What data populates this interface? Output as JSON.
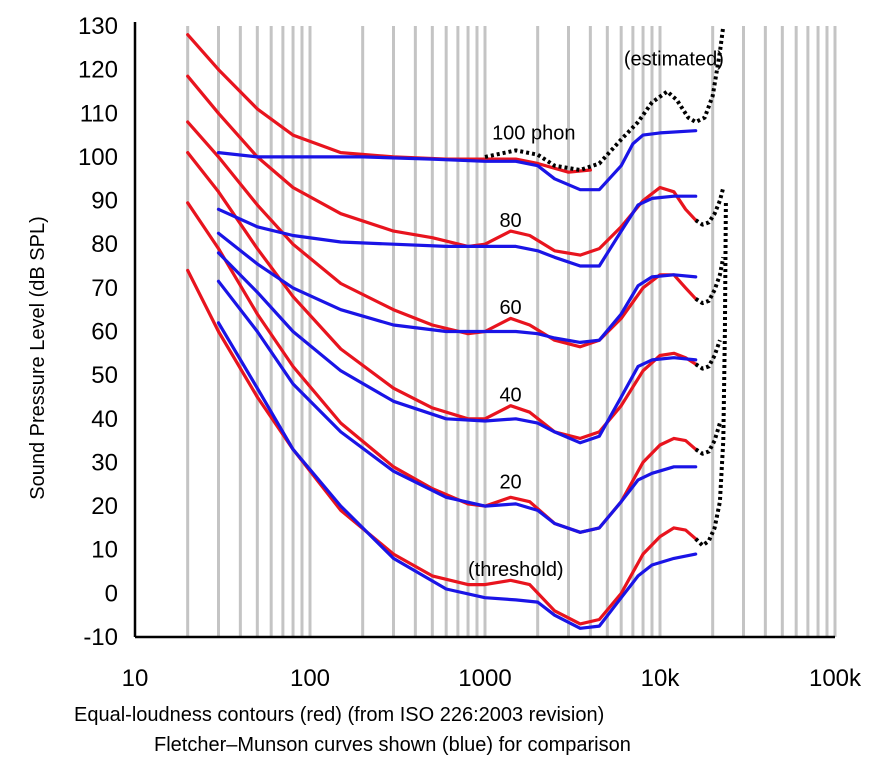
{
  "chart_data": {
    "type": "line",
    "title": "",
    "xlabel": "",
    "ylabel": "Sound Pressure Level (dB SPL)",
    "x_scale": "log",
    "xlim": [
      10,
      100000
    ],
    "ylim": [
      -10,
      130
    ],
    "grid": true,
    "x_ticks": [
      {
        "value": 10,
        "label": "10"
      },
      {
        "value": 100,
        "label": "100"
      },
      {
        "value": 1000,
        "label": "1000"
      },
      {
        "value": 10000,
        "label": "10k"
      },
      {
        "value": 100000,
        "label": "100k"
      }
    ],
    "y_ticks": [
      {
        "value": 130,
        "label": "130"
      },
      {
        "value": 120,
        "label": "120"
      },
      {
        "value": 110,
        "label": "110"
      },
      {
        "value": 100,
        "label": "100"
      },
      {
        "value": 90,
        "label": "90"
      },
      {
        "value": 80,
        "label": "80"
      },
      {
        "value": 70,
        "label": "70"
      },
      {
        "value": 60,
        "label": "60"
      },
      {
        "value": 50,
        "label": "50"
      },
      {
        "value": 40,
        "label": "40"
      },
      {
        "value": 30,
        "label": "30"
      },
      {
        "value": 20,
        "label": "20"
      },
      {
        "value": 10,
        "label": "10"
      },
      {
        "value": 0,
        "label": "0"
      },
      {
        "value": -10,
        "label": "-10"
      }
    ],
    "annotations": [
      {
        "text": "(estimated)",
        "x": 12000,
        "y": 121
      },
      {
        "text": "100 phon",
        "x": 1900,
        "y": 104
      },
      {
        "text": "80",
        "x": 1400,
        "y": 84
      },
      {
        "text": "60",
        "x": 1400,
        "y": 64
      },
      {
        "text": "40",
        "x": 1400,
        "y": 44
      },
      {
        "text": "20",
        "x": 1400,
        "y": 24
      },
      {
        "text": "(threshold)",
        "x": 1500,
        "y": 4
      }
    ],
    "captions": [
      "Equal-loudness contours (red) (from ISO 226:2003 revision)",
      "Fletcher–Munson curves shown (blue) for comparison"
    ],
    "series": [
      {
        "color": "#e8141e",
        "style": "solid",
        "points": [
          [
            20,
            128
          ],
          [
            30,
            120
          ],
          [
            50,
            111
          ],
          [
            80,
            105
          ],
          [
            150,
            101
          ],
          [
            300,
            100
          ],
          [
            600,
            99.5
          ],
          [
            1000,
            99.5
          ],
          [
            1500,
            99.5
          ],
          [
            2000,
            98.5
          ],
          [
            3000,
            96.5
          ],
          [
            4000,
            97
          ]
        ]
      },
      {
        "color": "#e8141e",
        "style": "solid",
        "points": [
          [
            20,
            118.5
          ],
          [
            30,
            110
          ],
          [
            50,
            100
          ],
          [
            80,
            93
          ],
          [
            150,
            87
          ],
          [
            300,
            83
          ],
          [
            500,
            81.5
          ],
          [
            800,
            79.5
          ],
          [
            1000,
            80
          ],
          [
            1400,
            83
          ],
          [
            1800,
            82
          ],
          [
            2500,
            78.5
          ],
          [
            3500,
            77.5
          ],
          [
            4500,
            79
          ],
          [
            6000,
            84
          ],
          [
            8000,
            90
          ],
          [
            10000,
            93
          ],
          [
            12000,
            92
          ],
          [
            14000,
            88
          ],
          [
            16000,
            85.5
          ]
        ]
      },
      {
        "color": "#e8141e",
        "style": "solid",
        "points": [
          [
            20,
            108
          ],
          [
            30,
            100
          ],
          [
            50,
            89
          ],
          [
            80,
            80
          ],
          [
            150,
            71
          ],
          [
            300,
            65
          ],
          [
            500,
            61.5
          ],
          [
            800,
            59.5
          ],
          [
            1000,
            60
          ],
          [
            1400,
            63
          ],
          [
            1800,
            61.5
          ],
          [
            2500,
            58
          ],
          [
            3500,
            56.5
          ],
          [
            4500,
            58
          ],
          [
            6000,
            63
          ],
          [
            8000,
            70
          ],
          [
            10000,
            73
          ],
          [
            12000,
            73
          ],
          [
            14000,
            70
          ],
          [
            16000,
            67.5
          ]
        ]
      },
      {
        "color": "#e8141e",
        "style": "solid",
        "points": [
          [
            20,
            101
          ],
          [
            30,
            92
          ],
          [
            50,
            79
          ],
          [
            80,
            68
          ],
          [
            150,
            56
          ],
          [
            300,
            47
          ],
          [
            500,
            42.5
          ],
          [
            800,
            40
          ],
          [
            1000,
            40
          ],
          [
            1400,
            43
          ],
          [
            1800,
            41.5
          ],
          [
            2500,
            37
          ],
          [
            3500,
            35.5
          ],
          [
            4500,
            37
          ],
          [
            6000,
            43
          ],
          [
            8000,
            51
          ],
          [
            10000,
            54.5
          ],
          [
            12000,
            55
          ],
          [
            14000,
            54
          ],
          [
            16000,
            52.5
          ]
        ]
      },
      {
        "color": "#e8141e",
        "style": "solid",
        "points": [
          [
            20,
            89.5
          ],
          [
            30,
            79
          ],
          [
            50,
            64
          ],
          [
            80,
            52
          ],
          [
            150,
            39
          ],
          [
            300,
            29
          ],
          [
            500,
            24
          ],
          [
            800,
            20.5
          ],
          [
            1000,
            20
          ],
          [
            1400,
            22
          ],
          [
            1800,
            21
          ],
          [
            2500,
            16
          ],
          [
            3500,
            14
          ],
          [
            4500,
            15
          ],
          [
            6000,
            21
          ],
          [
            8000,
            30
          ],
          [
            10000,
            34
          ],
          [
            12000,
            35.5
          ],
          [
            14000,
            35
          ],
          [
            16000,
            33
          ]
        ]
      },
      {
        "color": "#e8141e",
        "style": "solid",
        "points": [
          [
            20,
            74
          ],
          [
            30,
            60
          ],
          [
            50,
            45
          ],
          [
            80,
            33
          ],
          [
            150,
            19
          ],
          [
            300,
            9
          ],
          [
            500,
            4
          ],
          [
            800,
            2
          ],
          [
            1000,
            2
          ],
          [
            1400,
            3
          ],
          [
            1800,
            2
          ],
          [
            2500,
            -4
          ],
          [
            3500,
            -7
          ],
          [
            4500,
            -6
          ],
          [
            6000,
            0
          ],
          [
            8000,
            9
          ],
          [
            10000,
            13
          ],
          [
            12000,
            15
          ],
          [
            14000,
            14.5
          ],
          [
            16000,
            12.5
          ]
        ]
      },
      {
        "color": "#1a14e6",
        "style": "solid",
        "points": [
          [
            30,
            101
          ],
          [
            50,
            100
          ],
          [
            100,
            100
          ],
          [
            200,
            100
          ],
          [
            500,
            99.5
          ],
          [
            1000,
            99
          ],
          [
            1500,
            99
          ],
          [
            2000,
            98
          ],
          [
            2500,
            95
          ],
          [
            3500,
            92.5
          ],
          [
            4500,
            92.5
          ],
          [
            6000,
            98
          ],
          [
            7000,
            103
          ],
          [
            8000,
            105
          ],
          [
            10000,
            105.5
          ],
          [
            16000,
            106
          ]
        ]
      },
      {
        "color": "#1a14e6",
        "style": "solid",
        "points": [
          [
            30,
            88
          ],
          [
            50,
            84
          ],
          [
            80,
            82
          ],
          [
            150,
            80.5
          ],
          [
            300,
            80
          ],
          [
            600,
            79.5
          ],
          [
            1000,
            79.5
          ],
          [
            1500,
            79.5
          ],
          [
            2000,
            78.5
          ],
          [
            2500,
            77
          ],
          [
            3500,
            75
          ],
          [
            4500,
            75
          ],
          [
            6000,
            83
          ],
          [
            7500,
            89
          ],
          [
            9000,
            90.5
          ],
          [
            12000,
            91
          ],
          [
            16000,
            91
          ]
        ]
      },
      {
        "color": "#1a14e6",
        "style": "solid",
        "points": [
          [
            30,
            82.5
          ],
          [
            50,
            75.5
          ],
          [
            80,
            70
          ],
          [
            150,
            65
          ],
          [
            300,
            61.5
          ],
          [
            600,
            60
          ],
          [
            1000,
            60
          ],
          [
            1500,
            60
          ],
          [
            2000,
            59.5
          ],
          [
            2500,
            58.5
          ],
          [
            3500,
            57.5
          ],
          [
            4500,
            58
          ],
          [
            6000,
            64
          ],
          [
            7500,
            70.5
          ],
          [
            9000,
            72.5
          ],
          [
            12000,
            73
          ],
          [
            16000,
            72.5
          ]
        ]
      },
      {
        "color": "#1a14e6",
        "style": "solid",
        "points": [
          [
            30,
            78
          ],
          [
            50,
            69
          ],
          [
            80,
            60
          ],
          [
            150,
            51
          ],
          [
            300,
            44
          ],
          [
            600,
            40
          ],
          [
            1000,
            39.5
          ],
          [
            1500,
            40
          ],
          [
            2000,
            39
          ],
          [
            2500,
            37
          ],
          [
            3500,
            34.5
          ],
          [
            4500,
            36
          ],
          [
            6000,
            45
          ],
          [
            7500,
            52
          ],
          [
            9000,
            53.5
          ],
          [
            12000,
            54
          ],
          [
            16000,
            53.5
          ]
        ]
      },
      {
        "color": "#1a14e6",
        "style": "solid",
        "points": [
          [
            30,
            71.5
          ],
          [
            50,
            60
          ],
          [
            80,
            48
          ],
          [
            150,
            37
          ],
          [
            300,
            28
          ],
          [
            600,
            22
          ],
          [
            1000,
            20
          ],
          [
            1500,
            20.5
          ],
          [
            2000,
            19
          ],
          [
            2500,
            16
          ],
          [
            3500,
            14
          ],
          [
            4500,
            15
          ],
          [
            6000,
            21
          ],
          [
            7500,
            26
          ],
          [
            9000,
            27.5
          ],
          [
            12000,
            29
          ],
          [
            16000,
            29
          ]
        ]
      },
      {
        "color": "#1a14e6",
        "style": "solid",
        "points": [
          [
            30,
            62
          ],
          [
            50,
            47
          ],
          [
            80,
            33
          ],
          [
            150,
            20
          ],
          [
            300,
            8
          ],
          [
            600,
            1
          ],
          [
            1000,
            -1
          ],
          [
            1500,
            -1.5
          ],
          [
            2000,
            -2
          ],
          [
            2500,
            -5
          ],
          [
            3500,
            -8
          ],
          [
            4500,
            -7.5
          ],
          [
            6000,
            -1
          ],
          [
            7500,
            4
          ],
          [
            9000,
            6.5
          ],
          [
            12000,
            8
          ],
          [
            16000,
            9
          ]
        ]
      },
      {
        "color": "#000000",
        "style": "dotted",
        "points": [
          [
            1000,
            100
          ],
          [
            1500,
            101.5
          ],
          [
            2000,
            100.5
          ],
          [
            2500,
            98
          ],
          [
            3500,
            97
          ],
          [
            4500,
            98.5
          ],
          [
            6000,
            104
          ],
          [
            7500,
            108
          ],
          [
            9000,
            112.5
          ],
          [
            11000,
            115
          ],
          [
            12500,
            113
          ],
          [
            14500,
            109
          ],
          [
            16000,
            108
          ],
          [
            18000,
            109
          ],
          [
            20000,
            114
          ],
          [
            22000,
            124
          ],
          [
            23000,
            130
          ]
        ]
      },
      {
        "color": "#000000",
        "style": "dotted",
        "points": [
          [
            16000,
            85.5
          ],
          [
            17500,
            84.5
          ],
          [
            19000,
            85
          ],
          [
            20500,
            87
          ],
          [
            22000,
            90
          ],
          [
            23000,
            93
          ]
        ]
      },
      {
        "color": "#000000",
        "style": "dotted",
        "points": [
          [
            16000,
            67.5
          ],
          [
            17500,
            66.5
          ],
          [
            19000,
            67
          ],
          [
            20500,
            69.5
          ],
          [
            22000,
            73
          ],
          [
            23000,
            77
          ]
        ]
      },
      {
        "color": "#000000",
        "style": "dotted",
        "points": [
          [
            16000,
            52.5
          ],
          [
            17500,
            51.5
          ],
          [
            19000,
            52
          ],
          [
            20500,
            54.5
          ],
          [
            22000,
            58
          ]
        ]
      },
      {
        "color": "#000000",
        "style": "dotted",
        "points": [
          [
            16000,
            33
          ],
          [
            17500,
            32
          ],
          [
            19000,
            32.5
          ],
          [
            20500,
            35
          ],
          [
            22000,
            39
          ]
        ]
      },
      {
        "color": "#000000",
        "style": "dotted",
        "points": [
          [
            16000,
            12.5
          ],
          [
            17500,
            11
          ],
          [
            19000,
            12
          ],
          [
            20500,
            15
          ],
          [
            22000,
            21
          ],
          [
            23000,
            35
          ],
          [
            23500,
            60
          ],
          [
            23800,
            90
          ]
        ]
      }
    ]
  }
}
